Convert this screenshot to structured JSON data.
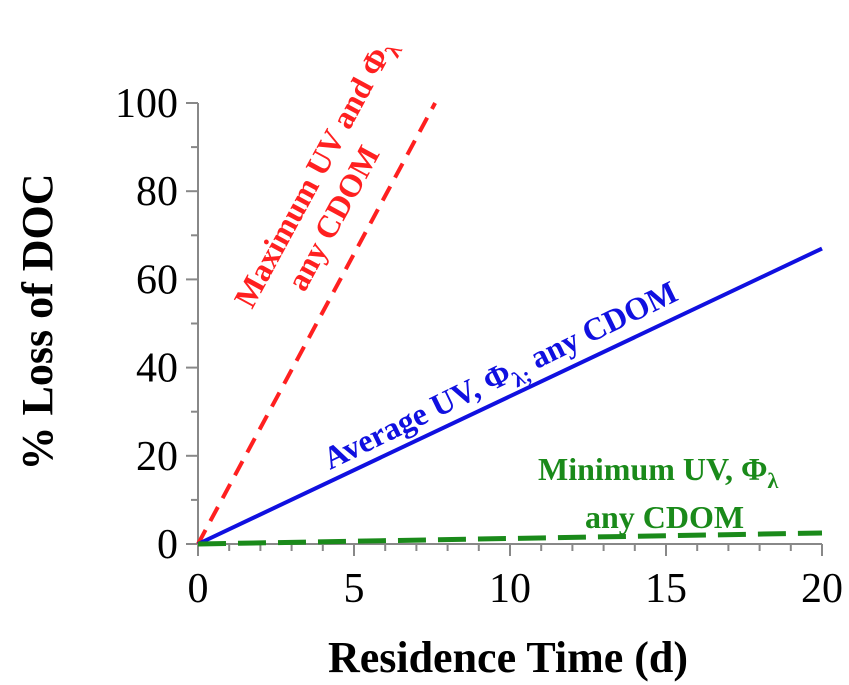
{
  "chart_data": {
    "type": "line",
    "xlabel": "Residence Time (d)",
    "ylabel": "% Loss of DOC",
    "xlim": [
      0,
      20
    ],
    "ylim": [
      0,
      100
    ],
    "xticks": [
      0,
      5,
      10,
      15,
      20
    ],
    "yticks": [
      0,
      20,
      40,
      60,
      80,
      100
    ],
    "grid": false,
    "series": [
      {
        "key": "max",
        "color": "#ff2020",
        "style": "dashed",
        "x": [
          0,
          7.6
        ],
        "y": [
          0,
          100
        ]
      },
      {
        "key": "avg",
        "color": "#1010e0",
        "style": "solid",
        "x": [
          0,
          20
        ],
        "y": [
          0,
          67
        ]
      },
      {
        "key": "min",
        "color": "#1a8a1a",
        "style": "dashed",
        "x": [
          0,
          20
        ],
        "y": [
          0,
          2.5
        ]
      }
    ],
    "annotations": [
      {
        "series": "max",
        "color": "#ff2020",
        "line1_main": "Maximum UV and Φ",
        "line1_sub": "λ",
        "line2": "any CDOM"
      },
      {
        "series": "avg",
        "color": "#1010e0",
        "line1_main": "Average UV, Φ",
        "line1_sub": "λ;",
        "line1_rest": " any CDOM"
      },
      {
        "series": "min",
        "color": "#1a8a1a",
        "line1_main": "Minimum UV, Φ",
        "line1_sub": "λ",
        "line2": "any CDOM"
      }
    ]
  }
}
